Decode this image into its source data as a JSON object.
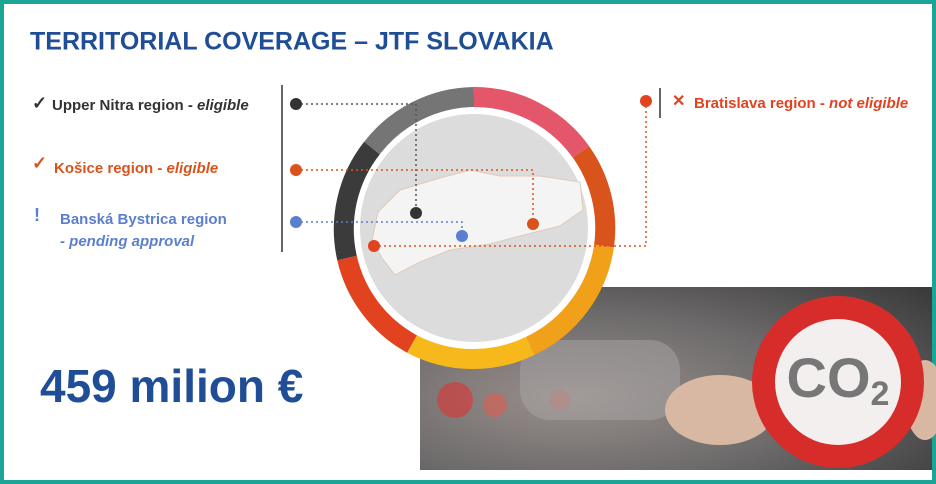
{
  "header": {
    "title": "TERRITORIAL COVERAGE – JTF SLOVAKIA"
  },
  "regions": [
    {
      "icon": "✓",
      "name": "Upper Nitra region - ",
      "status": "eligible"
    },
    {
      "icon": "✓",
      "name": "Košice region - ",
      "status": "eligible"
    },
    {
      "icon": "!",
      "name": "Banská Bystrica region",
      "status": "- pending approval"
    },
    {
      "icon": "✕",
      "name": "Bratislava region - ",
      "status": "not eligible"
    }
  ],
  "amount": "459 milion €",
  "sign": {
    "main": "CO",
    "sub": "2"
  }
}
